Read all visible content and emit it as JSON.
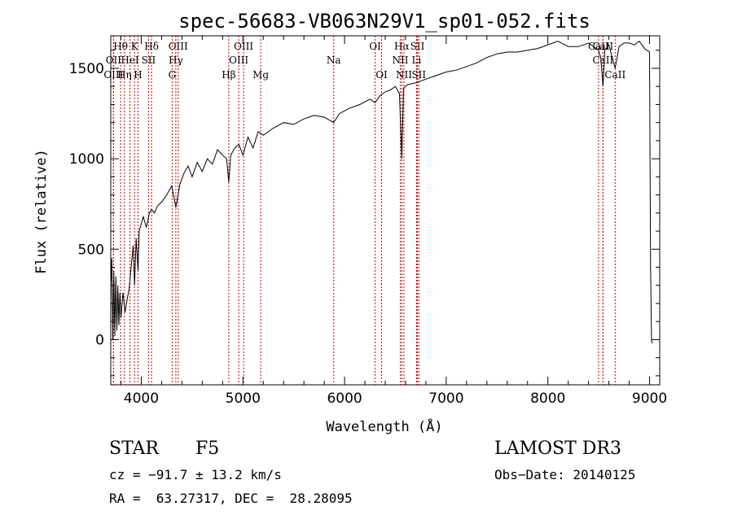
{
  "chart_data": {
    "type": "line",
    "title": "spec-56683-VB063N29V1_sp01-052.fits",
    "xlabel": "Wavelength (Å)",
    "ylabel": "Flux (relative)",
    "xlim": [
      3700,
      9100
    ],
    "ylim": [
      -250,
      1680
    ],
    "x_ticks": [
      4000,
      5000,
      6000,
      7000,
      8000,
      9000
    ],
    "y_ticks": [
      0,
      500,
      1000,
      1500
    ],
    "grid": false,
    "series": [
      {
        "name": "flux",
        "x": [
          3700,
          3710,
          3720,
          3730,
          3740,
          3750,
          3760,
          3770,
          3780,
          3790,
          3800,
          3820,
          3840,
          3860,
          3880,
          3900,
          3920,
          3934,
          3950,
          3968,
          3980,
          4000,
          4020,
          4050,
          4080,
          4101,
          4130,
          4160,
          4200,
          4250,
          4300,
          4340,
          4380,
          4420,
          4460,
          4500,
          4550,
          4600,
          4650,
          4700,
          4750,
          4800,
          4840,
          4861,
          4880,
          4920,
          4960,
          5000,
          5050,
          5100,
          5150,
          5200,
          5300,
          5400,
          5500,
          5600,
          5700,
          5800,
          5893,
          5950,
          6050,
          6150,
          6250,
          6300,
          6350,
          6400,
          6450,
          6500,
          6540,
          6563,
          6580,
          6620,
          6700,
          6800,
          6900,
          7000,
          7100,
          7200,
          7300,
          7400,
          7500,
          7600,
          7700,
          7800,
          7900,
          8000,
          8100,
          8200,
          8300,
          8400,
          8498,
          8520,
          8542,
          8560,
          8600,
          8662,
          8700,
          8750,
          8800,
          8850,
          8900,
          8950,
          9000,
          9010,
          9020,
          9030
        ],
        "y": [
          300,
          450,
          0,
          380,
          20,
          350,
          50,
          300,
          80,
          260,
          120,
          260,
          150,
          220,
          280,
          400,
          520,
          300,
          560,
          380,
          600,
          640,
          680,
          620,
          700,
          720,
          700,
          740,
          760,
          800,
          850,
          730,
          860,
          920,
          960,
          900,
          980,
          930,
          1000,
          970,
          1050,
          1020,
          1000,
          870,
          1020,
          1060,
          1080,
          1020,
          1120,
          1060,
          1150,
          1130,
          1170,
          1200,
          1190,
          1220,
          1240,
          1230,
          1200,
          1250,
          1280,
          1300,
          1330,
          1310,
          1350,
          1370,
          1380,
          1400,
          1360,
          1000,
          1390,
          1410,
          1420,
          1440,
          1460,
          1480,
          1490,
          1510,
          1530,
          1560,
          1580,
          1590,
          1590,
          1600,
          1610,
          1630,
          1650,
          1620,
          1620,
          1640,
          1600,
          1560,
          1400,
          1600,
          1630,
          1500,
          1620,
          1640,
          1640,
          1630,
          1650,
          1610,
          1590,
          400,
          -10,
          -20
        ]
      }
    ],
    "lines": [
      {
        "name": "Hθ",
        "wavelength": 3797,
        "row": "top"
      },
      {
        "name": "OII",
        "wavelength": 3727,
        "row": "middle"
      },
      {
        "name": "OIII",
        "wavelength": 3727,
        "row": "bottom"
      },
      {
        "name": "HeI",
        "wavelength": 3889,
        "row": "middle"
      },
      {
        "name": "K",
        "wavelength": 3934,
        "row": "top"
      },
      {
        "name": "Hη",
        "wavelength": 3835,
        "row": "bottom"
      },
      {
        "name": "H",
        "wavelength": 3968,
        "row": "bottom"
      },
      {
        "name": "SII",
        "wavelength": 4072,
        "row": "middle"
      },
      {
        "name": "Hδ",
        "wavelength": 4101,
        "row": "top"
      },
      {
        "name": "OIII",
        "wavelength": 4363,
        "row": "top"
      },
      {
        "name": "Hγ",
        "wavelength": 4340,
        "row": "middle"
      },
      {
        "name": "G",
        "wavelength": 4304,
        "row": "bottom"
      },
      {
        "name": "OIII",
        "wavelength": 5007,
        "row": "top"
      },
      {
        "name": "OIII",
        "wavelength": 4959,
        "row": "middle"
      },
      {
        "name": "Hβ",
        "wavelength": 4861,
        "row": "bottom"
      },
      {
        "name": "Mg",
        "wavelength": 5175,
        "row": "bottom"
      },
      {
        "name": "Na",
        "wavelength": 5893,
        "row": "middle"
      },
      {
        "name": "OI",
        "wavelength": 6300,
        "row": "top"
      },
      {
        "name": "OI",
        "wavelength": 6364,
        "row": "bottom"
      },
      {
        "name": "Hα",
        "wavelength": 6563,
        "row": "top"
      },
      {
        "name": "SII",
        "wavelength": 6717,
        "row": "top"
      },
      {
        "name": "NII",
        "wavelength": 6548,
        "row": "middle"
      },
      {
        "name": "Li",
        "wavelength": 6708,
        "row": "middle"
      },
      {
        "name": "NII",
        "wavelength": 6584,
        "row": "bottom"
      },
      {
        "name": "SII",
        "wavelength": 6731,
        "row": "bottom"
      },
      {
        "name": "CaII",
        "wavelength": 8498,
        "row": "top"
      },
      {
        "name": "CaII",
        "wavelength": 8542,
        "row": "top"
      },
      {
        "name": "CaII",
        "wavelength": 8542,
        "row": "middle"
      },
      {
        "name": "CaII",
        "wavelength": 8662,
        "row": "bottom"
      }
    ]
  },
  "info": {
    "classification": "STAR",
    "subclass": "F5",
    "survey": "LAMOST DR3",
    "redshift": "cz = −91.7 ± 13.2 km/s",
    "obs_date": "Obs−Date: 20140125",
    "coords": "RA =  63.27317, DEC =  28.28095"
  },
  "colors": {
    "line_marker": "#cc0000",
    "spectrum": "#000000"
  }
}
